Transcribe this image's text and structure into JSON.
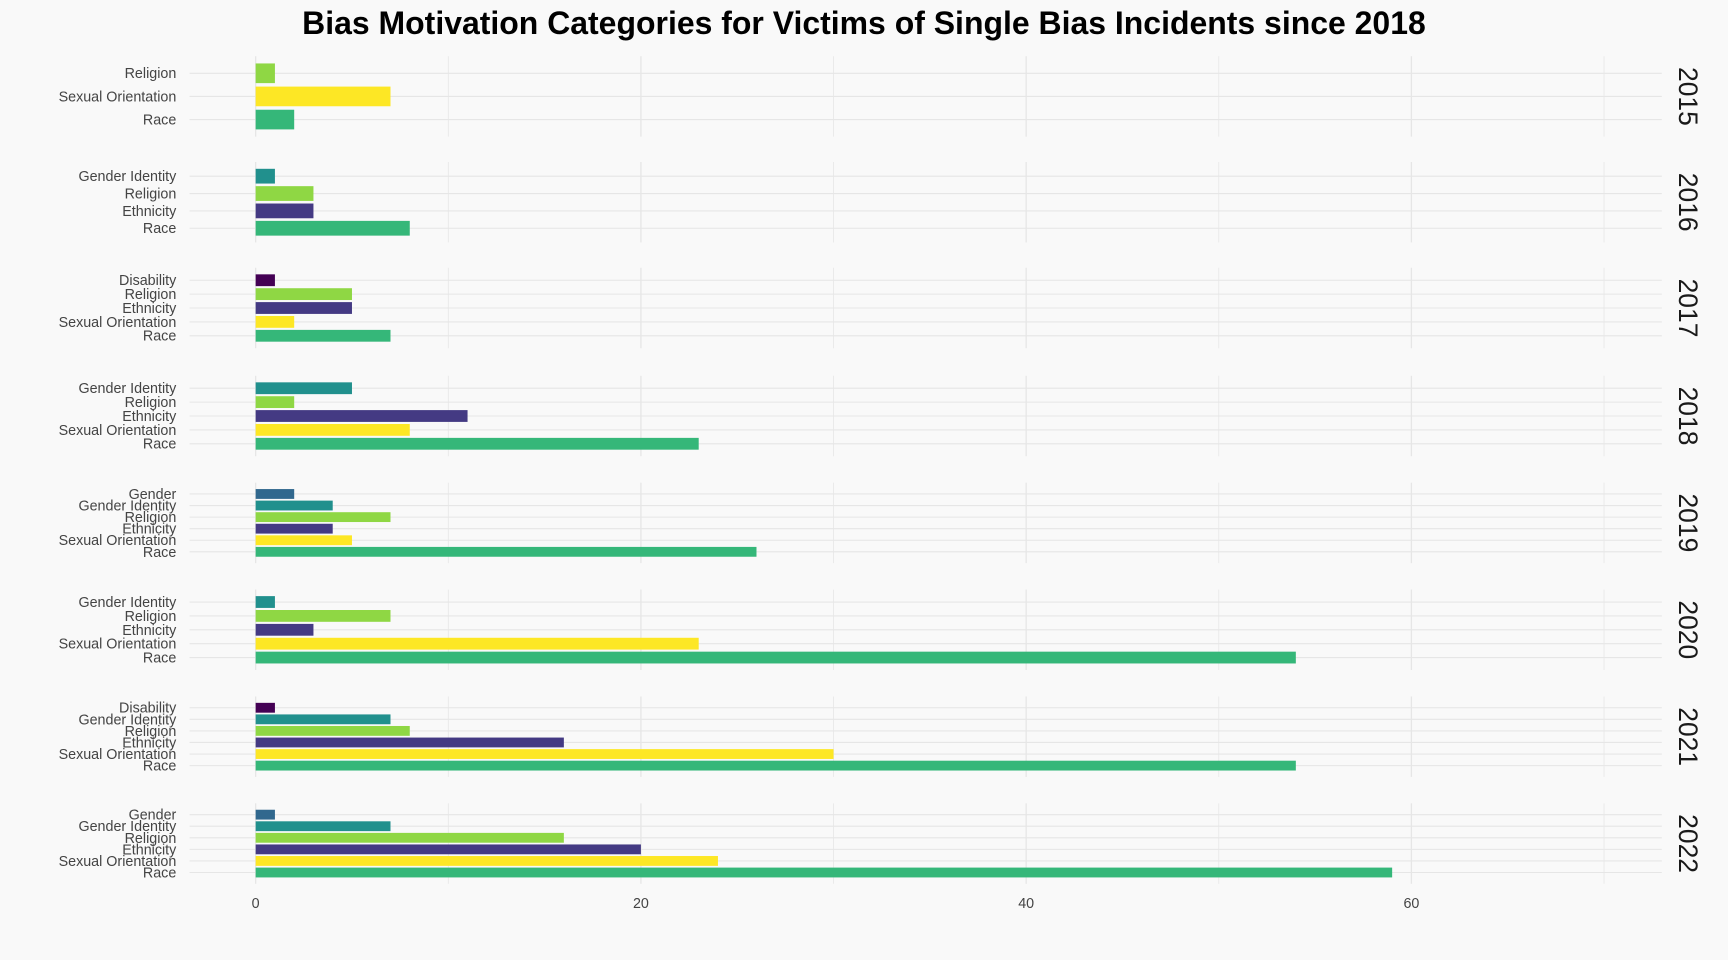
{
  "chart_data": {
    "type": "bar",
    "title": "Bias Motivation Categories for Victims of Single Bias Incidents since 2018",
    "xlabel": "",
    "ylabel": "",
    "xlim": [
      0,
      73
    ],
    "xticks": [
      0,
      20,
      40,
      60
    ],
    "grid": true,
    "legend": "none",
    "colors": {
      "Race": "#35b779",
      "Sexual Orientation": "#fde725",
      "Ethnicity": "#443a83",
      "Religion": "#8fd744",
      "Gender Identity": "#21908d",
      "Gender": "#31688e",
      "Disability": "#440154"
    },
    "panels": [
      {
        "year": "2015",
        "bars": [
          {
            "category": "Religion",
            "value": 1
          },
          {
            "category": "Sexual Orientation",
            "value": 7
          },
          {
            "category": "Race",
            "value": 2
          }
        ]
      },
      {
        "year": "2016",
        "bars": [
          {
            "category": "Gender Identity",
            "value": 1
          },
          {
            "category": "Religion",
            "value": 3
          },
          {
            "category": "Ethnicity",
            "value": 3
          },
          {
            "category": "Race",
            "value": 8
          }
        ]
      },
      {
        "year": "2017",
        "bars": [
          {
            "category": "Disability",
            "value": 1
          },
          {
            "category": "Religion",
            "value": 5
          },
          {
            "category": "Ethnicity",
            "value": 5
          },
          {
            "category": "Sexual Orientation",
            "value": 2
          },
          {
            "category": "Race",
            "value": 7
          }
        ]
      },
      {
        "year": "2018",
        "bars": [
          {
            "category": "Gender Identity",
            "value": 5
          },
          {
            "category": "Religion",
            "value": 2
          },
          {
            "category": "Ethnicity",
            "value": 11
          },
          {
            "category": "Sexual Orientation",
            "value": 8
          },
          {
            "category": "Race",
            "value": 23
          }
        ]
      },
      {
        "year": "2019",
        "bars": [
          {
            "category": "Gender",
            "value": 2
          },
          {
            "category": "Gender Identity",
            "value": 4
          },
          {
            "category": "Religion",
            "value": 7
          },
          {
            "category": "Ethnicity",
            "value": 4
          },
          {
            "category": "Sexual Orientation",
            "value": 5
          },
          {
            "category": "Race",
            "value": 26
          }
        ]
      },
      {
        "year": "2020",
        "bars": [
          {
            "category": "Gender Identity",
            "value": 1
          },
          {
            "category": "Religion",
            "value": 7
          },
          {
            "category": "Ethnicity",
            "value": 3
          },
          {
            "category": "Sexual Orientation",
            "value": 23
          },
          {
            "category": "Race",
            "value": 54
          }
        ]
      },
      {
        "year": "2021",
        "bars": [
          {
            "category": "Disability",
            "value": 1
          },
          {
            "category": "Gender Identity",
            "value": 7
          },
          {
            "category": "Religion",
            "value": 8
          },
          {
            "category": "Ethnicity",
            "value": 16
          },
          {
            "category": "Sexual Orientation",
            "value": 30
          },
          {
            "category": "Race",
            "value": 54
          }
        ]
      },
      {
        "year": "2022",
        "bars": [
          {
            "category": "Gender",
            "value": 1
          },
          {
            "category": "Gender Identity",
            "value": 7
          },
          {
            "category": "Religion",
            "value": 16
          },
          {
            "category": "Ethnicity",
            "value": 20
          },
          {
            "category": "Sexual Orientation",
            "value": 24
          },
          {
            "category": "Race",
            "value": 59
          }
        ]
      }
    ]
  }
}
